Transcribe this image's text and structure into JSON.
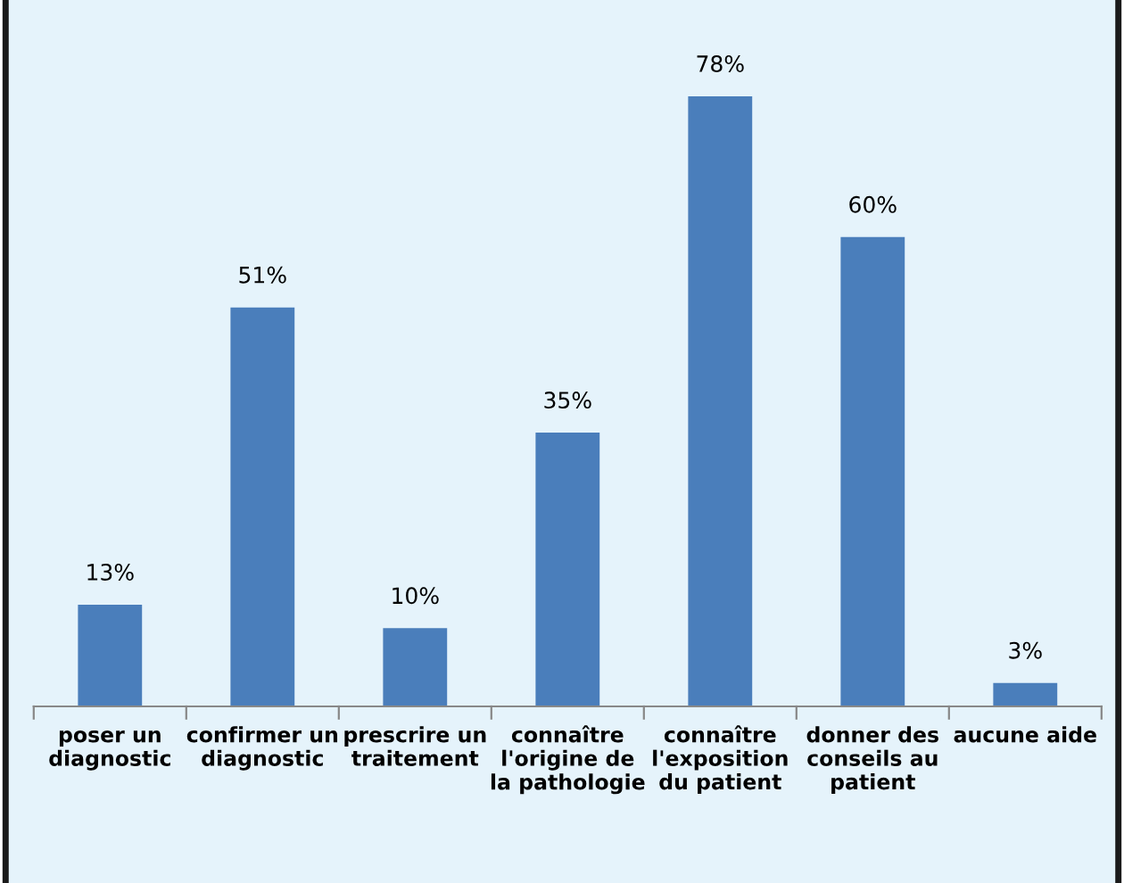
{
  "chart_data": {
    "type": "bar",
    "categories": [
      "poser un diagnostic",
      "confirmer un diagnostic",
      "prescrire un traitement",
      "connaître l'origine de la pathologie",
      "connaître l'exposition du patient",
      "donner des conseils au patient",
      "aucune aide"
    ],
    "values": [
      13,
      51,
      10,
      35,
      78,
      60,
      3
    ],
    "value_labels": [
      "13%",
      "51%",
      "10%",
      "35%",
      "78%",
      "60%",
      "3%"
    ],
    "color": "#4a7ebb"
  }
}
